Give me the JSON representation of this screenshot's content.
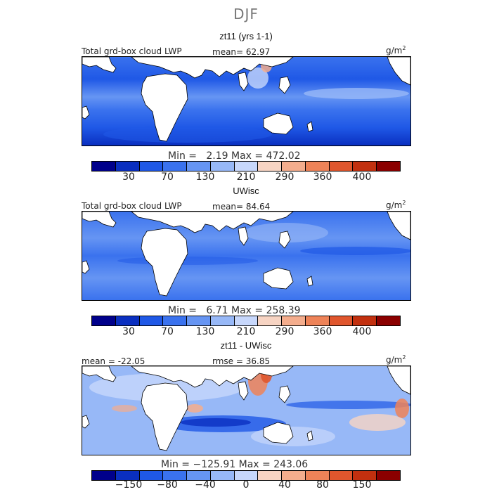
{
  "title": "DJF",
  "units_base": "g/m",
  "units_exp": "2",
  "colors": {
    "abs": [
      "#00008b",
      "#0a2fc0",
      "#1f58e6",
      "#3a72ee",
      "#6695f3",
      "#97b8f7",
      "#c7d7fb",
      "#f7d4c3",
      "#f4ad8d",
      "#ee8358",
      "#e0562d",
      "#c2300f",
      "#8b0000"
    ],
    "diff": [
      "#00008b",
      "#0a2fc0",
      "#1f58e6",
      "#3a72ee",
      "#6695f3",
      "#97b8f7",
      "#c7d7fb",
      "#f7d4c3",
      "#f4ad8d",
      "#ee8358",
      "#e0562d",
      "#c2300f",
      "#8b0000"
    ]
  },
  "panels": [
    {
      "title": "zt11 (yrs 1-1)",
      "left_label": "Total grd-box cloud LWP",
      "center_label": "mean=  62.97",
      "minmax": "Min =   2.19 Max = 472.02",
      "ticks": [
        "30",
        "70",
        "130",
        "210",
        "290",
        "360",
        "400"
      ]
    },
    {
      "title": "UWisc",
      "left_label": "Total grd-box cloud LWP",
      "center_label": "mean=  84.64",
      "minmax": "Min =   6.71 Max = 258.39",
      "ticks": [
        "30",
        "70",
        "130",
        "210",
        "290",
        "360",
        "400"
      ]
    },
    {
      "title": "zt11 - UWisc",
      "left_label": "mean = -22.05",
      "center_label": "rmse =  36.85",
      "minmax": "Min = −125.91 Max = 243.06",
      "ticks": [
        "−150",
        "−80",
        "−40",
        "0",
        "40",
        "80",
        "150"
      ]
    }
  ]
}
